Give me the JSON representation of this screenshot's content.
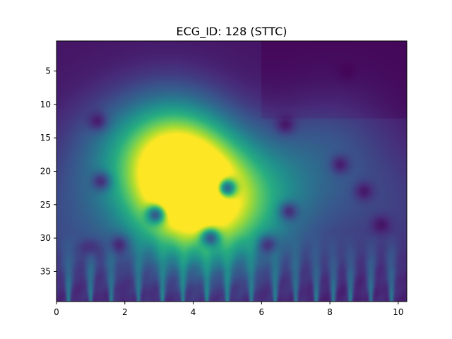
{
  "chart_data": {
    "type": "heatmap",
    "title": "ECG_ID: 128 (STTC)",
    "xlabel": "",
    "ylabel": "",
    "xlim": [
      0,
      10.25
    ],
    "ylim": [
      39.5,
      0.5
    ],
    "x_ticks": [
      0,
      2,
      4,
      6,
      8,
      10
    ],
    "x_tick_labels": [
      "0",
      "2",
      "4",
      "6",
      "8",
      "10"
    ],
    "y_ticks": [
      5,
      10,
      15,
      20,
      25,
      30,
      35
    ],
    "y_tick_labels": [
      "5",
      "10",
      "15",
      "20",
      "25",
      "30",
      "35"
    ],
    "colormap": "viridis",
    "grid": false,
    "legend": "none",
    "hotspots": [
      {
        "x": 3.7,
        "y": 20.5,
        "intensity": 1.0
      },
      {
        "x": 3.8,
        "y": 24.5,
        "intensity": 0.72
      },
      {
        "x": 4.4,
        "y": 25.5,
        "intensity": 0.45
      },
      {
        "x": 5.6,
        "y": 26.0,
        "intensity": 0.38
      },
      {
        "x": 3.3,
        "y": 15.0,
        "intensity": 0.55
      },
      {
        "x": 1.6,
        "y": 17.0,
        "intensity": 0.28
      },
      {
        "x": 6.8,
        "y": 21.0,
        "intensity": 0.26
      },
      {
        "x": 8.2,
        "y": 15.0,
        "intensity": 0.18
      },
      {
        "x": 0.6,
        "y": 28.0,
        "intensity": 0.2
      },
      {
        "x": 9.5,
        "y": 25.0,
        "intensity": 0.16
      }
    ],
    "dark_spots": [
      {
        "x": 1.2,
        "y": 12.5
      },
      {
        "x": 1.3,
        "y": 21.5
      },
      {
        "x": 2.9,
        "y": 26.5
      },
      {
        "x": 5.0,
        "y": 22.5
      },
      {
        "x": 6.7,
        "y": 13.0
      },
      {
        "x": 6.8,
        "y": 26.0
      },
      {
        "x": 8.3,
        "y": 19.0
      },
      {
        "x": 9.0,
        "y": 23.0
      },
      {
        "x": 9.5,
        "y": 28.0
      },
      {
        "x": 8.5,
        "y": 5.0
      },
      {
        "x": 6.2,
        "y": 31.0
      },
      {
        "x": 4.5,
        "y": 30.0
      },
      {
        "x": 1.0,
        "y": 31.5
      },
      {
        "x": 1.8,
        "y": 31.0
      }
    ],
    "bright_streak_x": [
      0.35,
      1.0,
      1.6,
      2.4,
      3.1,
      3.7,
      4.4,
      5.0,
      5.7,
      6.4,
      7.0,
      7.6,
      8.1,
      8.6,
      9.2,
      9.8
    ]
  }
}
